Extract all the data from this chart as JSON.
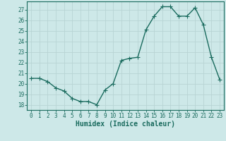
{
  "x": [
    0,
    1,
    2,
    3,
    4,
    5,
    6,
    7,
    8,
    9,
    10,
    11,
    12,
    13,
    14,
    15,
    16,
    17,
    18,
    19,
    20,
    21,
    22,
    23
  ],
  "y": [
    20.5,
    20.5,
    20.2,
    19.6,
    19.3,
    18.6,
    18.3,
    18.3,
    18.0,
    19.4,
    20.0,
    22.2,
    22.4,
    22.5,
    25.1,
    26.4,
    27.3,
    27.3,
    26.4,
    26.4,
    27.2,
    25.6,
    22.5,
    20.4
  ],
  "line_color": "#1a6b5e",
  "marker_color": "#1a6b5e",
  "bg_color": "#cde8e8",
  "grid_major_color": "#b8d4d4",
  "grid_minor_color": "#c8e0e0",
  "xlabel": "Humidex (Indice chaleur)",
  "ylim": [
    17.5,
    27.8
  ],
  "xlim": [
    -0.5,
    23.5
  ],
  "yticks": [
    18,
    19,
    20,
    21,
    22,
    23,
    24,
    25,
    26,
    27
  ],
  "xticks": [
    0,
    1,
    2,
    3,
    4,
    5,
    6,
    7,
    8,
    9,
    10,
    11,
    12,
    13,
    14,
    15,
    16,
    17,
    18,
    19,
    20,
    21,
    22,
    23
  ],
  "tick_color": "#1a6b5e",
  "label_color": "#1a6b5e",
  "spine_color": "#1a6b5e",
  "font_family": "monospace",
  "xlabel_fontsize": 7.0,
  "tick_fontsize": 5.5,
  "linewidth": 1.0,
  "markersize": 2.0
}
